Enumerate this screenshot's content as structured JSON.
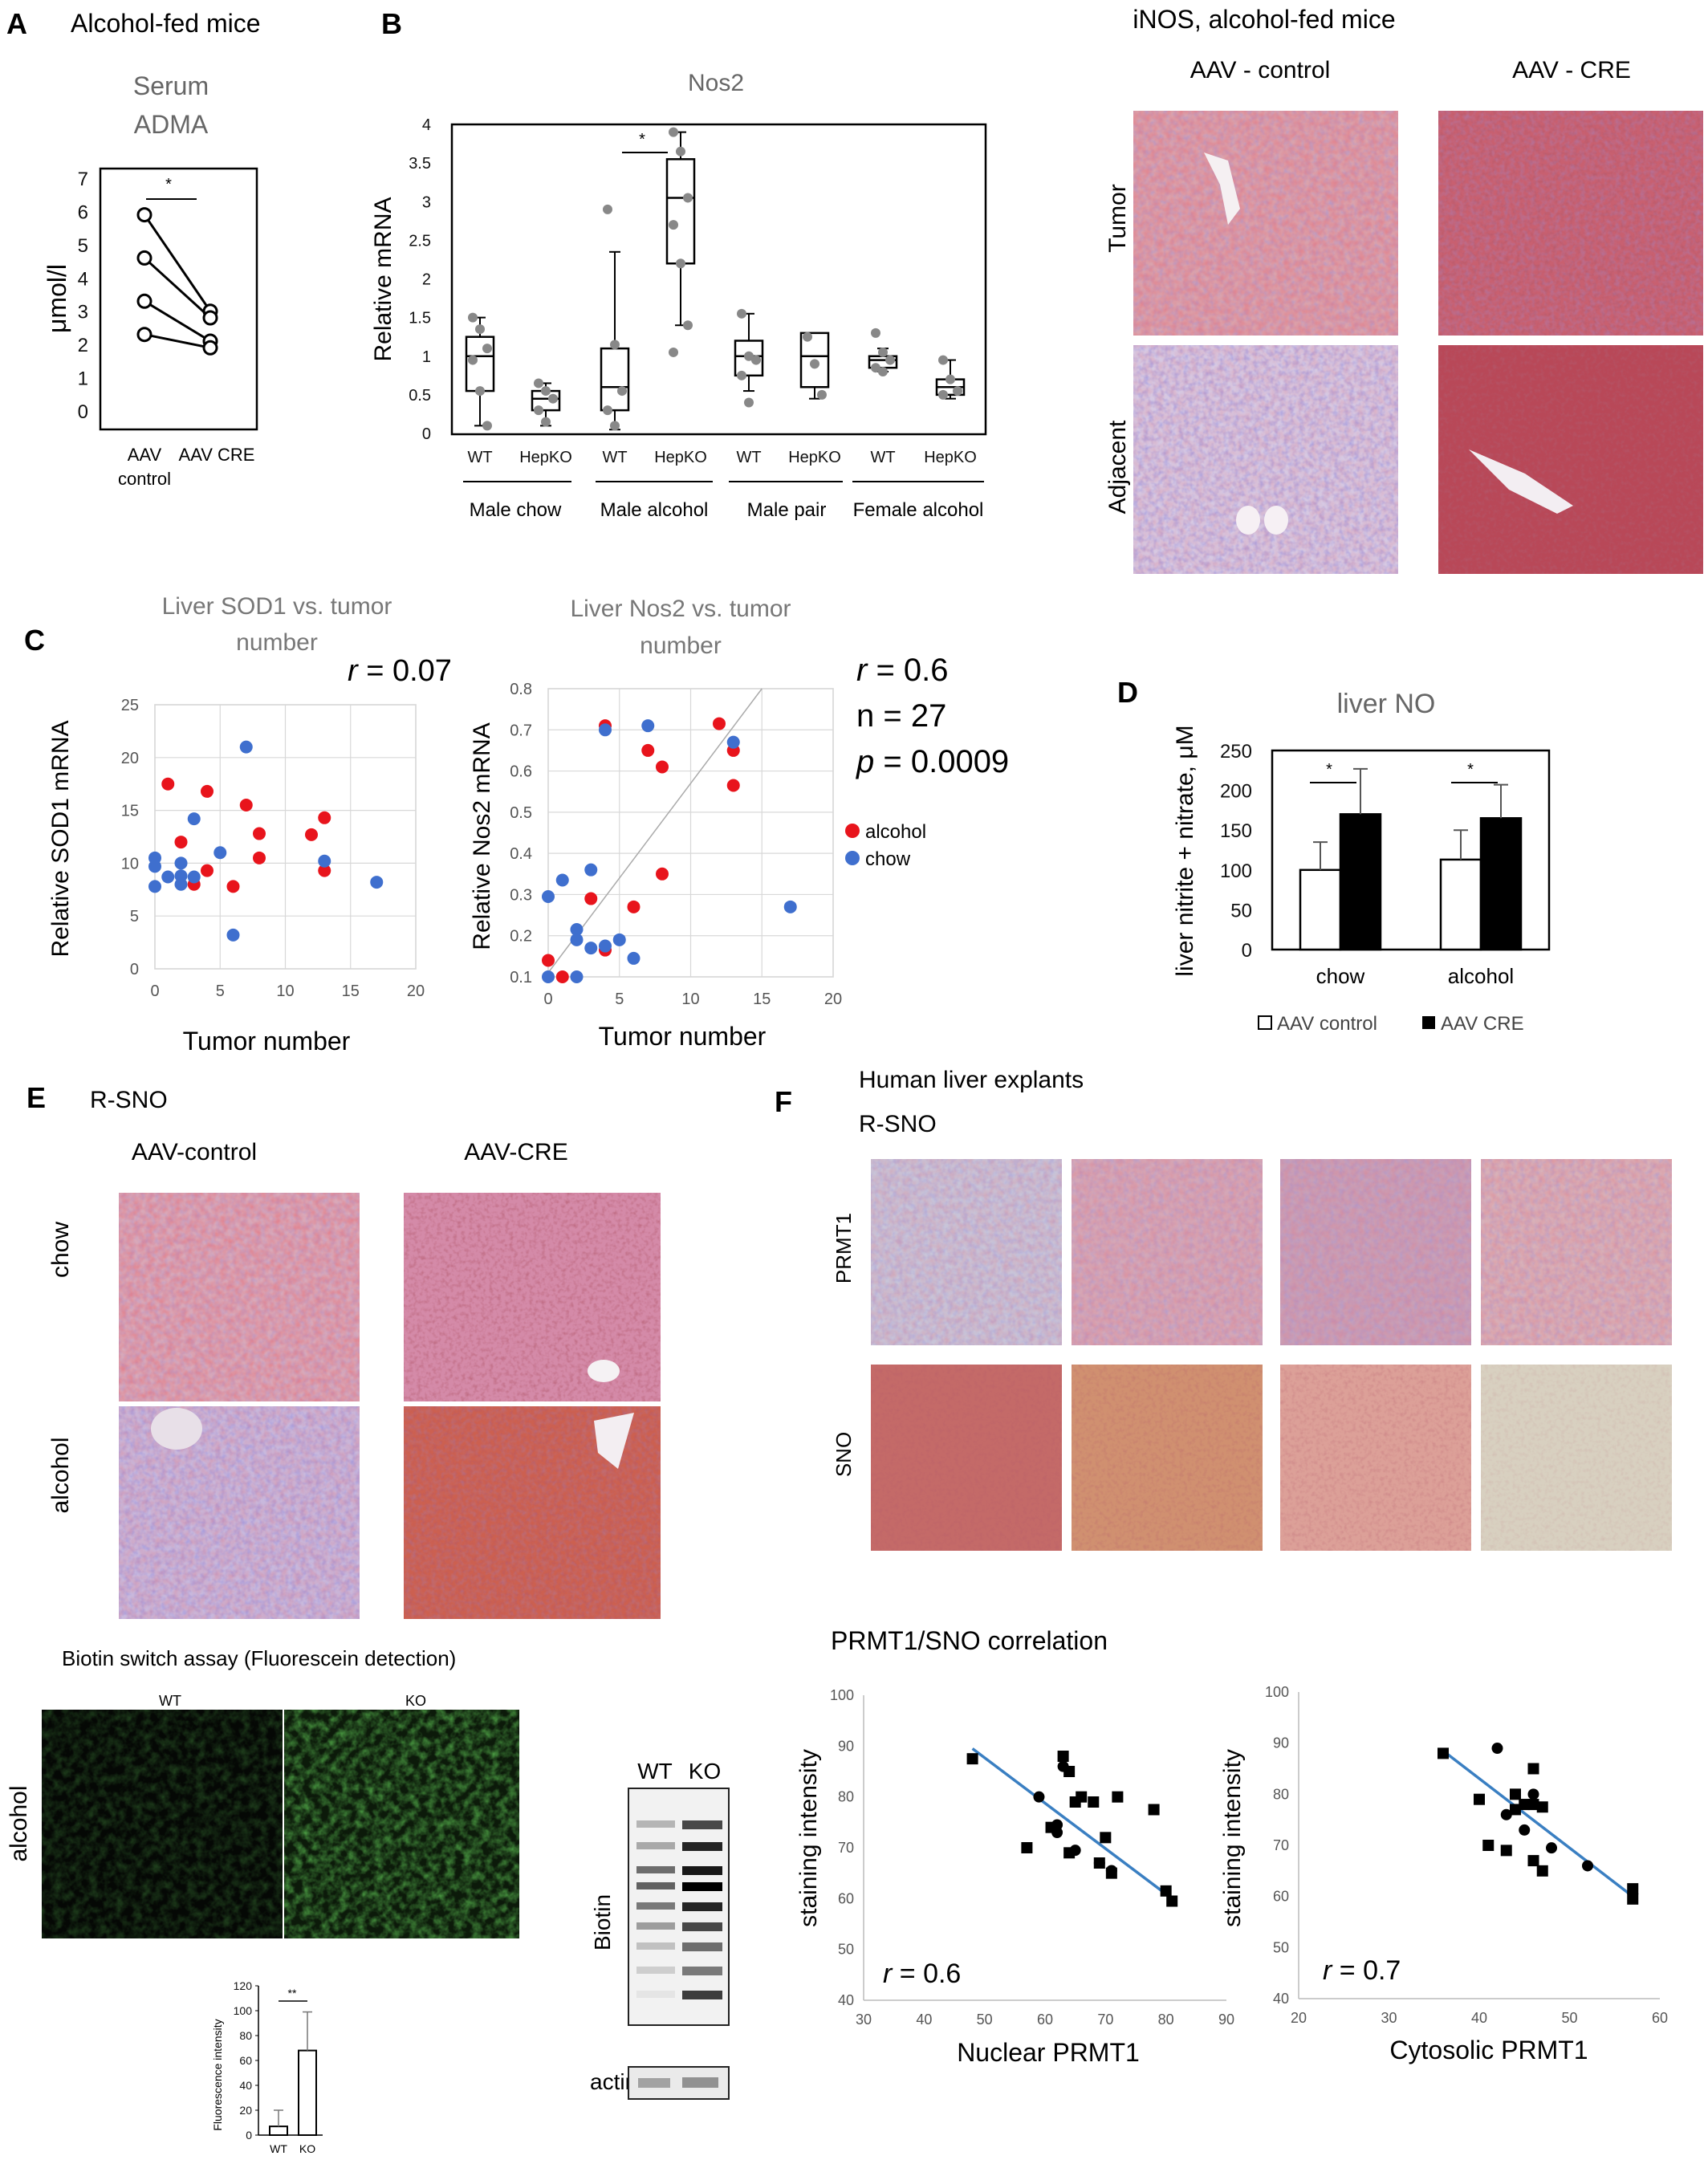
{
  "panels": {
    "A": {
      "letter": "A",
      "title": "Alcohol-fed mice",
      "chart_title_line1": "Serum",
      "chart_title_line2": "ADMA",
      "ylabel": "μmol/l",
      "yticks": [
        "0",
        "1",
        "2",
        "3",
        "4",
        "5",
        "6",
        "7"
      ],
      "xlabels": {
        "left_line1": "AAV",
        "left_line2": "control",
        "right": "AAV CRE"
      },
      "sig": "*",
      "chart_data": {
        "type": "line",
        "x": [
          "AAV control",
          "AAV CRE"
        ],
        "ylim": [
          0,
          7
        ],
        "series": [
          {
            "values": [
              5.9,
              3.0
            ]
          },
          {
            "values": [
              4.6,
              2.8
            ]
          },
          {
            "values": [
              3.3,
              2.1
            ]
          },
          {
            "values": [
              2.3,
              1.9
            ]
          }
        ]
      }
    },
    "B": {
      "letter": "B",
      "chart_title": "Nos2",
      "ylabel": "Relative mRNA",
      "yticks": [
        "0",
        "0.5",
        "1",
        "1.5",
        "2",
        "2.5",
        "3",
        "3.5",
        "4"
      ],
      "sig": "*",
      "groups": [
        "WT",
        "HepKO",
        "WT",
        "HepKO",
        "WT",
        "HepKO",
        "WT",
        "HepKO"
      ],
      "group_labels": [
        "Male  chow",
        "Male alcohol",
        "Male pair",
        "Female alcohol"
      ],
      "chart_data": {
        "type": "box",
        "categories": [
          "WT",
          "HepKO",
          "WT",
          "HepKO",
          "WT",
          "HepKO",
          "WT",
          "HepKO"
        ],
        "ylim": [
          0,
          4
        ],
        "boxes": [
          {
            "whisker_low": 0.1,
            "q1": 0.55,
            "median": 1.0,
            "q3": 1.25,
            "whisker_high": 1.5,
            "points": [
              1.5,
              1.35,
              1.1,
              0.95,
              0.55,
              0.1
            ]
          },
          {
            "whisker_low": 0.1,
            "q1": 0.3,
            "median": 0.45,
            "q3": 0.55,
            "whisker_high": 0.65,
            "points": [
              0.65,
              0.55,
              0.45,
              0.3,
              0.15
            ]
          },
          {
            "whisker_low": 0.05,
            "q1": 0.3,
            "median": 0.6,
            "q3": 1.1,
            "whisker_high": 2.35,
            "points": [
              2.9,
              1.15,
              0.55,
              0.3,
              0.1
            ]
          },
          {
            "whisker_low": 1.4,
            "q1": 2.2,
            "median": 3.05,
            "q3": 3.55,
            "whisker_high": 3.9,
            "points": [
              3.9,
              3.65,
              3.05,
              2.7,
              2.2,
              1.4,
              1.05
            ]
          },
          {
            "whisker_low": 0.55,
            "q1": 0.75,
            "median": 1.0,
            "q3": 1.2,
            "whisker_high": 1.55,
            "points": [
              1.55,
              1.0,
              0.95,
              0.75,
              0.4
            ]
          },
          {
            "whisker_low": 0.45,
            "q1": 0.6,
            "median": 1.0,
            "q3": 1.3,
            "whisker_high": 1.3,
            "points": [
              1.25,
              0.9,
              0.5
            ]
          },
          {
            "whisker_low": 0.8,
            "q1": 0.85,
            "median": 0.95,
            "q3": 1.0,
            "whisker_high": 1.1,
            "points": [
              1.3,
              1.05,
              0.95,
              0.85,
              0.8
            ]
          },
          {
            "whisker_low": 0.45,
            "q1": 0.5,
            "median": 0.6,
            "q3": 0.7,
            "whisker_high": 0.95,
            "points": [
              0.95,
              0.7,
              0.55,
              0.5
            ]
          }
        ]
      }
    },
    "iNOS": {
      "title": "iNOS,  alcohol-fed mice",
      "col1": "AAV - control",
      "col2": "AAV - CRE",
      "row1": "Tumor",
      "row2": "Adjacent"
    },
    "C": {
      "letter": "C",
      "left_title_line1": "Liver SOD1 vs. tumor",
      "left_title_line2": "number",
      "left_r_symbol": "r",
      "left_r_value": " = 0.07",
      "left_ylabel": "Relative SOD1 mRNA",
      "left_xlabel": "Tumor number",
      "left_yticks": [
        "0",
        "5",
        "10",
        "15",
        "20",
        "25"
      ],
      "left_xticks": [
        "0",
        "5",
        "10",
        "15",
        "20"
      ],
      "right_title_line1": "Liver Nos2 vs. tumor",
      "right_title_line2": "number",
      "right_r_symbol": "r",
      "right_r_value": " = 0.6",
      "right_n": "n = 27",
      "right_p_symbol": "p",
      "right_p_value": " = 0.0009",
      "right_ylabel": "Relative Nos2 mRNA",
      "right_xlabel": "Tumor number",
      "right_yticks": [
        "0.1",
        "0.2",
        "0.3",
        "0.4",
        "0.5",
        "0.6",
        "0.7",
        "0.8"
      ],
      "right_xticks": [
        "0",
        "5",
        "10",
        "15",
        "20"
      ],
      "legend_alcohol": "alcohol",
      "legend_chow": "chow",
      "colors": {
        "alcohol": "#e8141c",
        "chow": "#3f6fce"
      },
      "chart_data": [
        {
          "type": "scatter",
          "xlim": [
            0,
            20
          ],
          "ylim": [
            0,
            25
          ],
          "series": [
            {
              "points": [
                [
                  1,
                  17.5
                ],
                [
                  2,
                  12
                ],
                [
                  3,
                  8
                ],
                [
                  4,
                  9.3
                ],
                [
                  4,
                  16.8
                ],
                [
                  6,
                  7.8
                ],
                [
                  7,
                  15.5
                ],
                [
                  8,
                  12.8
                ],
                [
                  8,
                  10.5
                ],
                [
                  12,
                  12.7
                ],
                [
                  13,
                  14.3
                ],
                [
                  13,
                  9.3
                ]
              ]
            },
            {
              "points": [
                [
                  0,
                  10.5
                ],
                [
                  0,
                  9.7
                ],
                [
                  0,
                  7.8
                ],
                [
                  1,
                  8.7
                ],
                [
                  2,
                  8
                ],
                [
                  2,
                  8.8
                ],
                [
                  2,
                  10
                ],
                [
                  3,
                  8.7
                ],
                [
                  3,
                  14.2
                ],
                [
                  5,
                  11
                ],
                [
                  6,
                  3.2
                ],
                [
                  7,
                  21
                ],
                [
                  13,
                  10.2
                ],
                [
                  17,
                  8.2
                ]
              ]
            }
          ]
        },
        {
          "type": "scatter",
          "xlim": [
            0,
            20
          ],
          "ylim": [
            0.1,
            0.8
          ],
          "series": [
            {
              "points": [
                [
                  0,
                  0.14
                ],
                [
                  1,
                  0.1
                ],
                [
                  3,
                  0.29
                ],
                [
                  4,
                  0.71
                ],
                [
                  4,
                  0.165
                ],
                [
                  6,
                  0.27
                ],
                [
                  7,
                  0.65
                ],
                [
                  8,
                  0.61
                ],
                [
                  8,
                  0.35
                ],
                [
                  12,
                  0.715
                ],
                [
                  13,
                  0.65
                ],
                [
                  13,
                  0.565
                ]
              ]
            },
            {
              "points": [
                [
                  0,
                  0.295
                ],
                [
                  0,
                  0.1
                ],
                [
                  1,
                  0.335
                ],
                [
                  2,
                  0.1
                ],
                [
                  2,
                  0.215
                ],
                [
                  2,
                  0.19
                ],
                [
                  3,
                  0.36
                ],
                [
                  3,
                  0.17
                ],
                [
                  4,
                  0.175
                ],
                [
                  4,
                  0.7
                ],
                [
                  5,
                  0.19
                ],
                [
                  6,
                  0.145
                ],
                [
                  7,
                  0.71
                ],
                [
                  13,
                  0.67
                ],
                [
                  17,
                  0.27
                ]
              ]
            }
          ]
        }
      ]
    },
    "D": {
      "letter": "D",
      "chart_title": "liver NO",
      "ylabel": "liver nitrite + nitrate, μM",
      "yticks": [
        "0",
        "50",
        "100",
        "150",
        "200",
        "250"
      ],
      "categories": [
        "chow",
        "alcohol"
      ],
      "legend_control": "AAV control",
      "legend_cre": "AAV CRE",
      "sig": "*",
      "chart_data": {
        "type": "bar",
        "categories": [
          "chow",
          "alcohol"
        ],
        "ylim": [
          0,
          250
        ],
        "series": [
          {
            "name": "AAV control",
            "values": [
              100,
              113
            ],
            "errors": [
              35,
              37
            ]
          },
          {
            "name": "AAV CRE",
            "values": [
              170,
              165
            ],
            "errors": [
              57,
              42
            ]
          }
        ]
      }
    },
    "E": {
      "letter": "E",
      "title": "R-SNO",
      "col1": "AAV-control",
      "col2": "AAV-CRE",
      "row1": "chow",
      "row2": "alcohol",
      "biotin_title": "Biotin switch assay (Fluorescein detection)",
      "fluor_row": "alcohol",
      "fluor_wt": "WT",
      "fluor_ko": "KO",
      "blot_wt": "WT",
      "blot_ko": "KO",
      "blot_biotin": "Biotin",
      "blot_actin": "actin",
      "mini_ylabel": "Fluorescence intensity",
      "mini_yticks": [
        "0",
        "20",
        "40",
        "60",
        "80",
        "100",
        "120"
      ],
      "mini_sig": "**",
      "chart_data": {
        "type": "bar",
        "categories": [
          "WT",
          "KO"
        ],
        "ylim": [
          0,
          120
        ],
        "values": [
          7,
          68
        ],
        "errors": [
          13,
          31
        ]
      }
    },
    "F": {
      "letter": "F",
      "title_line1": "Human liver explants",
      "title_line2": "R-SNO",
      "row1": "PRMT1",
      "row2": "SNO",
      "corr_title": "PRMT1/SNO correlation",
      "left_ylabel": "staining intensity",
      "left_xlabel": "Nuclear PRMT1",
      "left_r_symbol": "r",
      "left_r_value": " = 0.6",
      "left_yticks": [
        "40",
        "50",
        "60",
        "70",
        "80",
        "90",
        "100"
      ],
      "left_xticks": [
        "30",
        "40",
        "50",
        "60",
        "70",
        "80",
        "90"
      ],
      "right_ylabel": "staining intensity",
      "right_xlabel": "Cytosolic PRMT1",
      "right_r_symbol": "r",
      "right_r_value": " = 0.7",
      "right_yticks": [
        "40",
        "50",
        "60",
        "70",
        "80",
        "90",
        "100"
      ],
      "right_xticks": [
        "20",
        "30",
        "40",
        "50",
        "60"
      ],
      "chart_data": [
        {
          "type": "scatter",
          "xlim": [
            30,
            90
          ],
          "ylim": [
            40,
            100
          ],
          "squares": [
            [
              48,
              87.5
            ],
            [
              57,
              70
            ],
            [
              61,
              74
            ],
            [
              63,
              88
            ],
            [
              64,
              85
            ],
            [
              64,
              69
            ],
            [
              65,
              79
            ],
            [
              66,
              80
            ],
            [
              68,
              79
            ],
            [
              69,
              67
            ],
            [
              70,
              72
            ],
            [
              71,
              65
            ],
            [
              72,
              80
            ],
            [
              78,
              77.5
            ],
            [
              80,
              61.5
            ],
            [
              81,
              59.5
            ]
          ],
          "circles": [
            [
              59,
              80
            ],
            [
              62,
              73
            ],
            [
              63,
              86
            ],
            [
              65,
              69.5
            ],
            [
              69,
              67
            ],
            [
              71,
              65.5
            ],
            [
              62,
              74.5
            ]
          ],
          "fit": [
            [
              48,
              89.5
            ],
            [
              81,
              60
            ]
          ]
        },
        {
          "type": "scatter",
          "xlim": [
            20,
            60
          ],
          "ylim": [
            40,
            100
          ],
          "squares": [
            [
              36,
              88
            ],
            [
              40,
              79
            ],
            [
              41,
              70
            ],
            [
              43,
              69
            ],
            [
              44,
              80
            ],
            [
              44,
              77
            ],
            [
              45,
              78
            ],
            [
              46,
              85
            ],
            [
              46,
              78
            ],
            [
              46,
              67
            ],
            [
              47,
              77.5
            ],
            [
              47,
              65
            ],
            [
              57,
              61.5
            ],
            [
              57,
              59.5
            ]
          ],
          "circles": [
            [
              42,
              89
            ],
            [
              43,
              76
            ],
            [
              45,
              73
            ],
            [
              46,
              80
            ],
            [
              48,
              69.5
            ],
            [
              52,
              66
            ]
          ],
          "fit": [
            [
              36,
              88.5
            ],
            [
              57,
              60
            ]
          ]
        }
      ]
    }
  }
}
